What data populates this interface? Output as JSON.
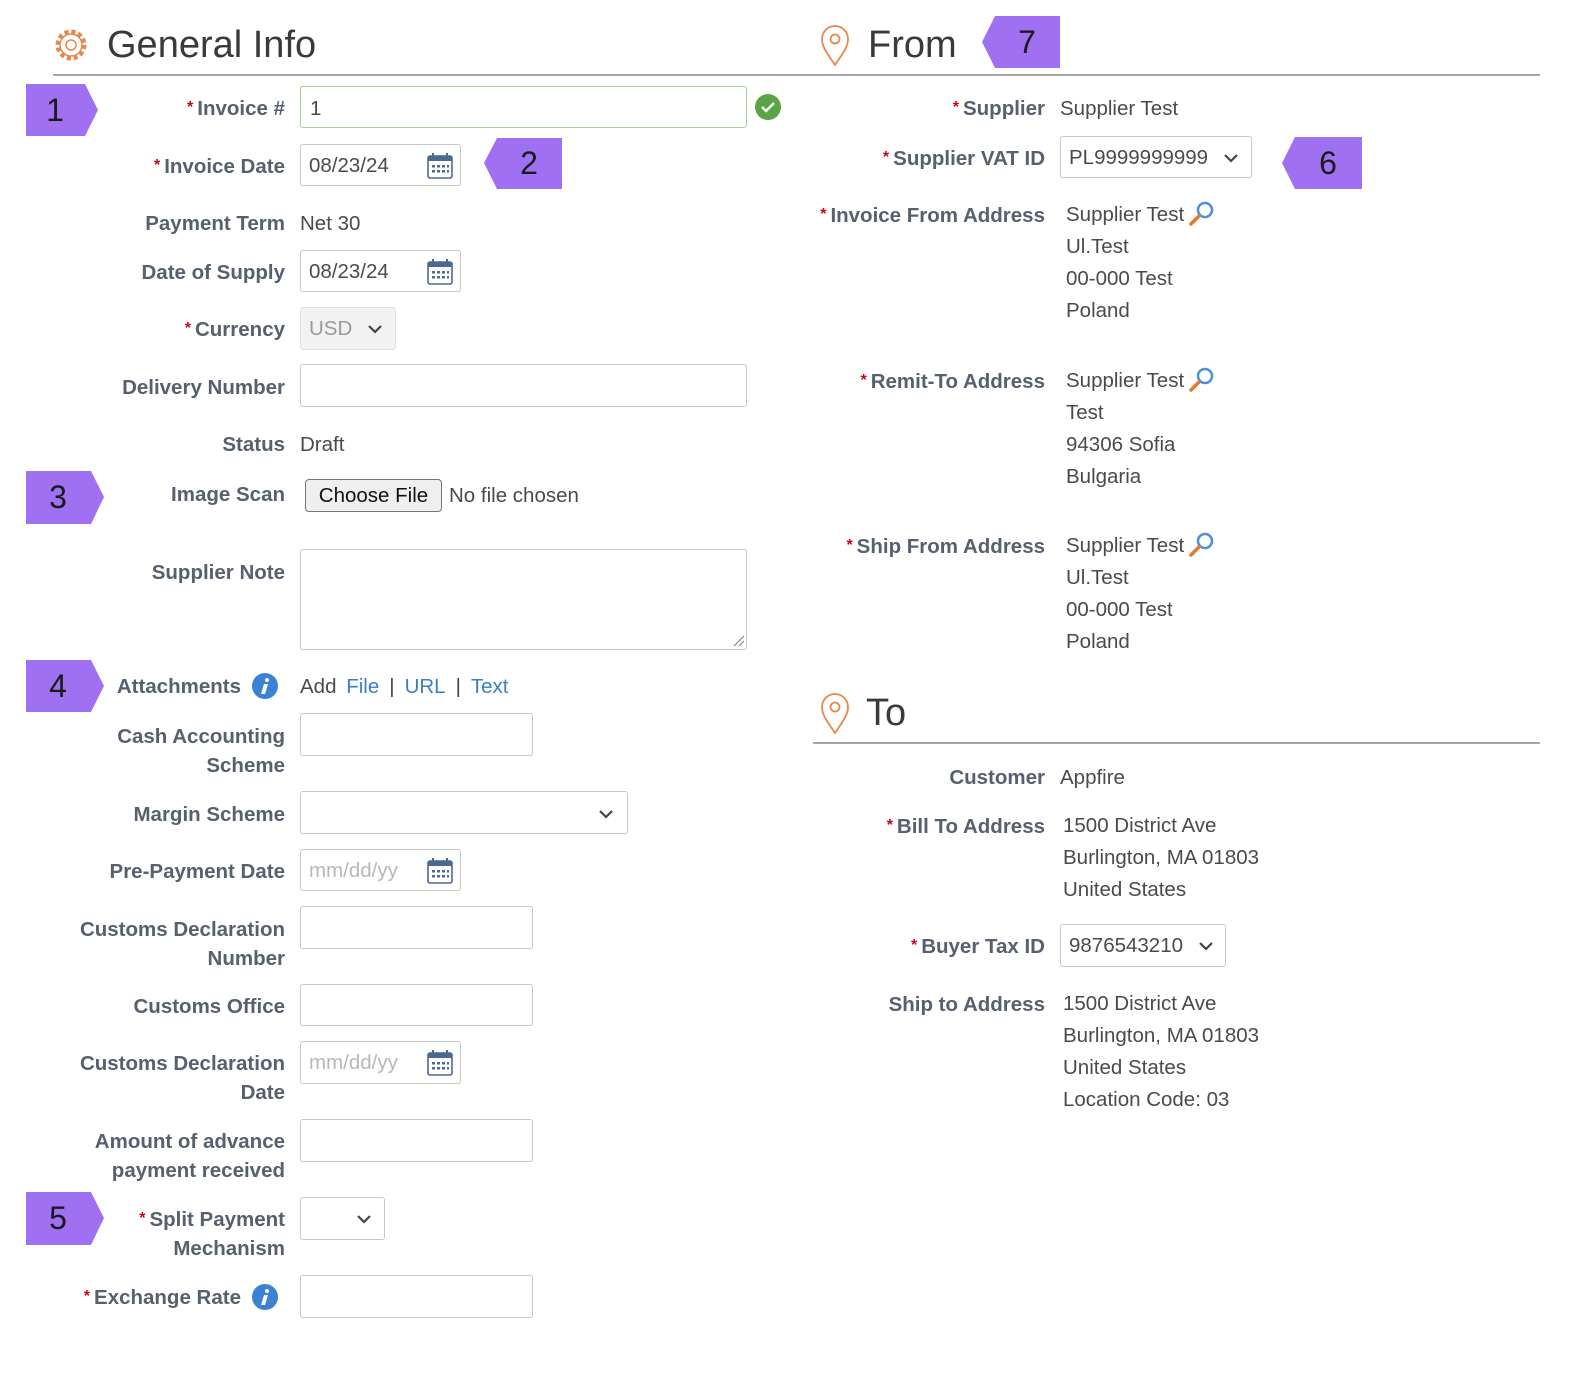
{
  "required_marker": "*",
  "general_info": {
    "title": "General Info",
    "fields": [
      {
        "label": "Invoice #",
        "value": "1"
      },
      {
        "label": "Invoice Date",
        "value": "08/23/24"
      },
      {
        "label": "Payment Term",
        "value": "Net 30"
      },
      {
        "label": "Date of Supply",
        "value": "08/23/24"
      },
      {
        "label": "Currency",
        "value": "USD"
      },
      {
        "label": "Delivery Number"
      },
      {
        "label": "Status",
        "value": "Draft"
      },
      {
        "label": "Image Scan",
        "button": "Choose File",
        "value": "No file chosen"
      },
      {
        "label": "Supplier Note"
      },
      {
        "label": "Attachments",
        "value": "Add",
        "links": [
          "File",
          "URL",
          "Text"
        ],
        "separator": "|"
      },
      {
        "label": "Cash Accounting Scheme"
      },
      {
        "label": "Margin Scheme"
      },
      {
        "label": "Pre-Payment Date",
        "placeholder": "mm/dd/yy"
      },
      {
        "label": "Customs Declaration Number"
      },
      {
        "label": "Customs Office"
      },
      {
        "label": "Customs Declaration Date",
        "placeholder": "mm/dd/yy"
      },
      {
        "label": "Amount of advance payment received"
      },
      {
        "label": "Split Payment Mechanism"
      },
      {
        "label": "Exchange Rate"
      }
    ]
  },
  "from": {
    "title": "From",
    "fields": [
      {
        "label": "Supplier",
        "value": "Supplier Test"
      },
      {
        "label": "Supplier VAT ID",
        "value": "PL9999999999"
      },
      {
        "label": "Invoice From Address",
        "lines": [
          "Supplier Test",
          "Ul.Test",
          "00-000 Test",
          "Poland"
        ]
      },
      {
        "label": "Remit-To Address",
        "lines": [
          "Supplier Test",
          "Test",
          "94306 Sofia",
          "Bulgaria"
        ]
      },
      {
        "label": "Ship From Address",
        "lines": [
          "Supplier Test",
          "Ul.Test",
          "00-000 Test",
          "Poland"
        ]
      }
    ]
  },
  "to": {
    "title": "To",
    "fields": [
      {
        "label": "Customer",
        "value": "Appfire"
      },
      {
        "label": "Bill To Address",
        "lines": [
          "1500 District Ave",
          "Burlington, MA 01803",
          "United States"
        ]
      },
      {
        "label": "Buyer Tax ID",
        "value": "9876543210"
      },
      {
        "label": "Ship to Address",
        "lines": [
          "1500 District Ave",
          "Burlington, MA 01803",
          "United States",
          "Location Code: 03"
        ]
      }
    ]
  },
  "callouts": [
    "1",
    "2",
    "3",
    "4",
    "5",
    "6",
    "7"
  ]
}
